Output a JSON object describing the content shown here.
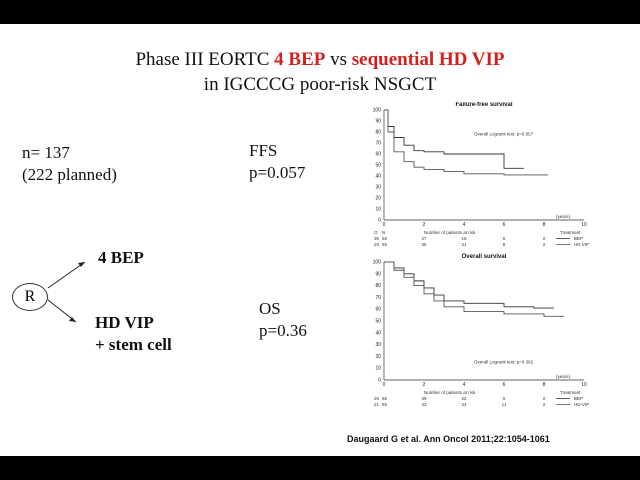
{
  "title": {
    "line1_prefix": "Phase III EORTC ",
    "line1_red1": "4 BEP",
    "line1_mid": " vs ",
    "line1_red2": "sequential HD VIP",
    "line2": "in IGCCCG poor-risk NSGCT"
  },
  "left": {
    "n": "n= 137",
    "planned": "(222 planned)",
    "randomize": "R",
    "arm1": "4 BEP",
    "arm2_line1": "HD VIP",
    "arm2_line2": "+ stem cell"
  },
  "ffs": {
    "label": "FFS",
    "p": "p=0.057"
  },
  "os": {
    "label": "OS",
    "p": "p=0.36"
  },
  "reference": "Daugaard G et al. Ann Oncol 2011;22:1054-1061",
  "navigation": {
    "icons": [
      "arrow-left-icon",
      "pen-icon",
      "menu-icon",
      "arrow-right-icon"
    ]
  },
  "chart_data": [
    {
      "type": "line",
      "title": "Failure-free survival",
      "xlim": [
        0,
        10
      ],
      "ylim": [
        0,
        100
      ],
      "xticks": [
        "0",
        "2",
        "4",
        "6",
        "8",
        "10"
      ],
      "yticks": [
        "0",
        "10",
        "20",
        "30",
        "40",
        "50",
        "60",
        "70",
        "80",
        "90",
        "100"
      ],
      "xlabel": "(years)",
      "annotation": "Overall Logrank test: p=0.057",
      "risk_header": "Number of patients at risk",
      "risk_cols": [
        "O",
        "N"
      ],
      "risk_rows": [
        {
          "O": "36",
          "N": "66",
          "counts": [
            "27",
            "15",
            "5",
            "2"
          ],
          "treatment": "BEP"
        },
        {
          "O": "29",
          "N": "65",
          "counts": [
            "36",
            "21",
            "8",
            "2"
          ],
          "treatment": "HD VIP"
        }
      ],
      "legend_title": "Treatment",
      "series": [
        {
          "name": "HD VIP",
          "x": [
            0,
            0.2,
            0.5,
            1,
            1.5,
            2,
            3,
            4,
            6,
            7
          ],
          "y": [
            100,
            85,
            75,
            68,
            63,
            62,
            60,
            60,
            47,
            47
          ]
        },
        {
          "name": "BEP",
          "x": [
            0,
            0.2,
            0.5,
            1,
            1.5,
            2,
            3,
            4,
            6,
            8.2
          ],
          "y": [
            100,
            80,
            62,
            53,
            48,
            46,
            44,
            42,
            41,
            41
          ]
        }
      ]
    },
    {
      "type": "line",
      "title": "Overall survival",
      "xlim": [
        0,
        10
      ],
      "ylim": [
        0,
        100
      ],
      "xticks": [
        "0",
        "2",
        "4",
        "6",
        "8",
        "10"
      ],
      "yticks": [
        "0",
        "10",
        "20",
        "30",
        "40",
        "50",
        "60",
        "70",
        "80",
        "90",
        "100"
      ],
      "xlabel": "(years)",
      "annotation": "Overall Logrank test: p=0.362",
      "risk_header": "Number of patients at risk",
      "risk_rows": [
        {
          "O": "26",
          "N": "66",
          "counts": [
            "39",
            "22",
            "9",
            "2"
          ],
          "treatment": "BEP"
        },
        {
          "O": "21",
          "N": "65",
          "counts": [
            "42",
            "24",
            "11",
            "2"
          ],
          "treatment": "HD-VIP"
        }
      ],
      "legend_title": "Treatment",
      "series": [
        {
          "name": "HD-VIP",
          "x": [
            0,
            0.5,
            1,
            1.5,
            2,
            2.5,
            3,
            4,
            6,
            7.5,
            8.5
          ],
          "y": [
            100,
            95,
            90,
            84,
            78,
            72,
            67,
            65,
            62,
            61,
            61
          ]
        },
        {
          "name": "BEP",
          "x": [
            0,
            0.5,
            1,
            1.5,
            2,
            2.5,
            3,
            4,
            6,
            8,
            9
          ],
          "y": [
            100,
            93,
            87,
            80,
            73,
            67,
            62,
            58,
            56,
            54,
            54
          ]
        }
      ]
    }
  ]
}
